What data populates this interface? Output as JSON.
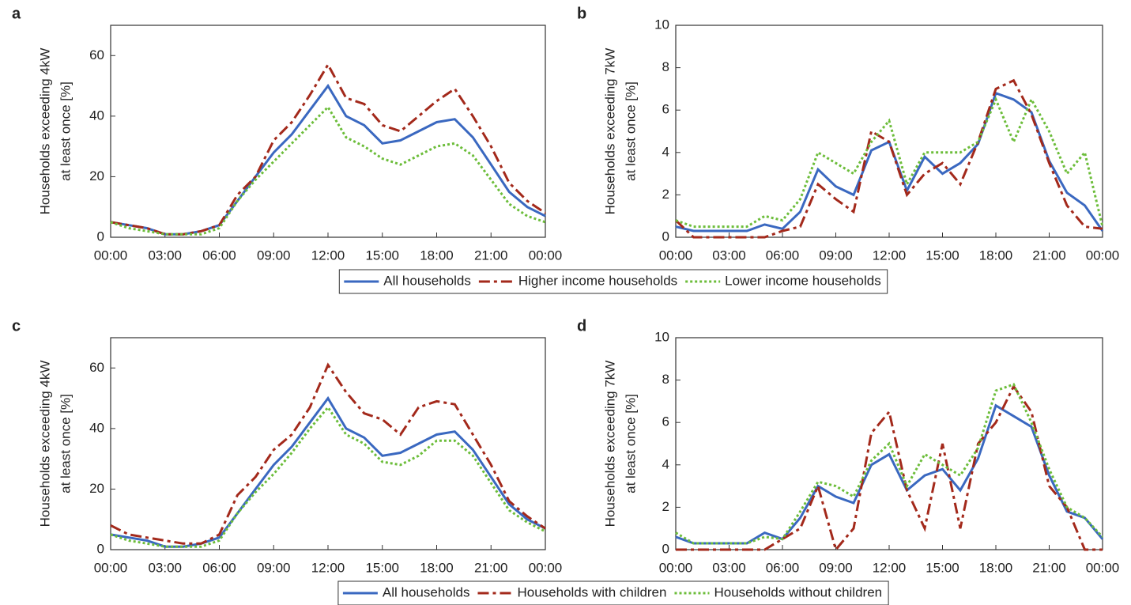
{
  "chart_data": [
    {
      "type": "line",
      "panel": "a",
      "ylabel": [
        "Households exceeding 4kW",
        "at least once [%]"
      ],
      "x": [
        0,
        1,
        2,
        3,
        4,
        5,
        6,
        7,
        8,
        9,
        10,
        11,
        12,
        13,
        14,
        15,
        16,
        17,
        18,
        19,
        20,
        21,
        22,
        23,
        24
      ],
      "xlim": [
        0,
        24
      ],
      "ylim": [
        0,
        70
      ],
      "xticks": [
        {
          "value": 0,
          "label": "00:00"
        },
        {
          "value": 3,
          "label": "03:00"
        },
        {
          "value": 6,
          "label": "06:00"
        },
        {
          "value": 9,
          "label": "09:00"
        },
        {
          "value": 12,
          "label": "12:00"
        },
        {
          "value": 15,
          "label": "15:00"
        },
        {
          "value": 18,
          "label": "18:00"
        },
        {
          "value": 21,
          "label": "21:00"
        },
        {
          "value": 24,
          "label": "00:00"
        }
      ],
      "yticks": [
        0,
        20,
        40,
        60
      ],
      "legend": true,
      "series": [
        {
          "name": "All households",
          "color": "#3a68c0",
          "values": [
            5,
            4,
            3,
            1,
            1,
            2,
            4,
            12,
            20,
            28,
            34,
            42,
            50,
            40,
            37,
            31,
            32,
            35,
            38,
            39,
            33,
            24,
            15,
            10,
            7
          ]
        },
        {
          "name": "Higher income households",
          "color": "#a3291b",
          "values": [
            5,
            4,
            3,
            1,
            1,
            2,
            4,
            14,
            20,
            32,
            38,
            47,
            57,
            46,
            44,
            37,
            35,
            40,
            45,
            49,
            40,
            30,
            18,
            12,
            8
          ]
        },
        {
          "name": "Lower income households",
          "color": "#6cbd3a",
          "values": [
            5,
            3,
            2,
            1,
            1,
            1,
            3,
            12,
            19,
            25,
            31,
            37,
            43,
            33,
            30,
            26,
            24,
            27,
            30,
            31,
            27,
            19,
            11,
            7,
            5
          ]
        }
      ]
    },
    {
      "type": "line",
      "panel": "b",
      "ylabel": [
        "Households exceeding 7kW",
        "at least once [%]"
      ],
      "x": [
        0,
        1,
        2,
        3,
        4,
        5,
        6,
        7,
        8,
        9,
        10,
        11,
        12,
        13,
        14,
        15,
        16,
        17,
        18,
        19,
        20,
        21,
        22,
        23,
        24
      ],
      "xlim": [
        0,
        24
      ],
      "ylim": [
        0,
        10
      ],
      "xticks": [
        {
          "value": 0,
          "label": "00:00"
        },
        {
          "value": 3,
          "label": "03:00"
        },
        {
          "value": 6,
          "label": "06:00"
        },
        {
          "value": 9,
          "label": "09:00"
        },
        {
          "value": 12,
          "label": "12:00"
        },
        {
          "value": 15,
          "label": "15:00"
        },
        {
          "value": 18,
          "label": "18:00"
        },
        {
          "value": 21,
          "label": "21:00"
        },
        {
          "value": 24,
          "label": "00:00"
        }
      ],
      "yticks": [
        0,
        2,
        4,
        6,
        8,
        10
      ],
      "legend": false,
      "series": [
        {
          "color": "#3a68c0",
          "values": [
            0.5,
            0.3,
            0.3,
            0.3,
            0.3,
            0.6,
            0.4,
            1.2,
            3.2,
            2.4,
            2.0,
            4.1,
            4.5,
            2.2,
            3.8,
            3.0,
            3.5,
            4.4,
            6.8,
            6.5,
            5.9,
            3.6,
            2.1,
            1.5,
            0.3
          ]
        },
        {
          "color": "#a3291b",
          "values": [
            0.8,
            0,
            0,
            0,
            0,
            0,
            0.3,
            0.5,
            2.5,
            1.8,
            1.2,
            5,
            4.5,
            2,
            3,
            3.5,
            2.5,
            4.5,
            7,
            7.4,
            5.8,
            3.5,
            1.5,
            0.5,
            0.4
          ]
        },
        {
          "color": "#6cbd3a",
          "values": [
            0.8,
            0.5,
            0.5,
            0.5,
            0.5,
            1.0,
            0.8,
            1.8,
            4,
            3.5,
            3,
            4.5,
            5.5,
            2.5,
            4,
            4,
            4,
            4.5,
            6.5,
            4.5,
            6.5,
            5,
            3,
            4,
            0.5
          ]
        }
      ]
    },
    {
      "type": "line",
      "panel": "c",
      "ylabel": [
        "Households exceeding 4kW",
        "at least once [%]"
      ],
      "x": [
        0,
        1,
        2,
        3,
        4,
        5,
        6,
        7,
        8,
        9,
        10,
        11,
        12,
        13,
        14,
        15,
        16,
        17,
        18,
        19,
        20,
        21,
        22,
        23,
        24
      ],
      "xlim": [
        0,
        24
      ],
      "ylim": [
        0,
        70
      ],
      "xticks": [
        {
          "value": 0,
          "label": "00:00"
        },
        {
          "value": 3,
          "label": "03:00"
        },
        {
          "value": 6,
          "label": "06:00"
        },
        {
          "value": 9,
          "label": "09:00"
        },
        {
          "value": 12,
          "label": "12:00"
        },
        {
          "value": 15,
          "label": "15:00"
        },
        {
          "value": 18,
          "label": "18:00"
        },
        {
          "value": 21,
          "label": "21:00"
        },
        {
          "value": 24,
          "label": "00:00"
        }
      ],
      "yticks": [
        0,
        20,
        40,
        60
      ],
      "legend": true,
      "series": [
        {
          "name": "All households",
          "color": "#3a68c0",
          "values": [
            5,
            4,
            3,
            1,
            1,
            2,
            4,
            12,
            20,
            28,
            34,
            42,
            50,
            40,
            37,
            31,
            32,
            35,
            38,
            39,
            33,
            24,
            15,
            10,
            7
          ]
        },
        {
          "name": "Households with children",
          "color": "#a3291b",
          "values": [
            8,
            5,
            4,
            3,
            2,
            2,
            5,
            18,
            24,
            33,
            38,
            47,
            61,
            52,
            45,
            43,
            38,
            47,
            49,
            48,
            38,
            28,
            16,
            11,
            7
          ]
        },
        {
          "name": "Households without children",
          "color": "#6cbd3a",
          "values": [
            5,
            3,
            2,
            1,
            1,
            1,
            3,
            12,
            19,
            25,
            32,
            40,
            47,
            38,
            35,
            29,
            28,
            31,
            36,
            36,
            31,
            22,
            13,
            9,
            6
          ]
        }
      ]
    },
    {
      "type": "line",
      "panel": "d",
      "ylabel": [
        "Households exceeding 7kW",
        "at least once [%]"
      ],
      "x": [
        0,
        1,
        2,
        3,
        4,
        5,
        6,
        7,
        8,
        9,
        10,
        11,
        12,
        13,
        14,
        15,
        16,
        17,
        18,
        19,
        20,
        21,
        22,
        23,
        24
      ],
      "xlim": [
        0,
        24
      ],
      "ylim": [
        0,
        10
      ],
      "xticks": [
        {
          "value": 0,
          "label": "00:00"
        },
        {
          "value": 3,
          "label": "03:00"
        },
        {
          "value": 6,
          "label": "06:00"
        },
        {
          "value": 9,
          "label": "09:00"
        },
        {
          "value": 12,
          "label": "12:00"
        },
        {
          "value": 15,
          "label": "15:00"
        },
        {
          "value": 18,
          "label": "18:00"
        },
        {
          "value": 21,
          "label": "21:00"
        },
        {
          "value": 24,
          "label": "00:00"
        }
      ],
      "yticks": [
        0,
        2,
        4,
        6,
        8,
        10
      ],
      "legend": false,
      "series": [
        {
          "color": "#3a68c0",
          "values": [
            0.6,
            0.3,
            0.3,
            0.3,
            0.3,
            0.8,
            0.5,
            1.5,
            3.0,
            2.5,
            2.2,
            4.0,
            4.5,
            2.8,
            3.5,
            3.8,
            2.8,
            4.3,
            6.8,
            6.3,
            5.8,
            3.5,
            1.8,
            1.5,
            0.5
          ]
        },
        {
          "color": "#a3291b",
          "values": [
            0,
            0,
            0,
            0,
            0,
            0,
            0.5,
            1,
            3,
            0,
            1,
            5.5,
            6.5,
            2.8,
            1,
            5,
            1,
            5,
            6,
            7.7,
            6.5,
            3,
            2,
            0,
            0
          ]
        },
        {
          "color": "#6cbd3a",
          "values": [
            0.8,
            0.3,
            0.3,
            0.3,
            0.3,
            0.6,
            0.5,
            1.8,
            3.2,
            3.0,
            2.5,
            4.2,
            5,
            3,
            4.5,
            4,
            3.5,
            4.8,
            7.5,
            7.8,
            6,
            3.8,
            2,
            1.5,
            0.6
          ]
        }
      ]
    }
  ]
}
